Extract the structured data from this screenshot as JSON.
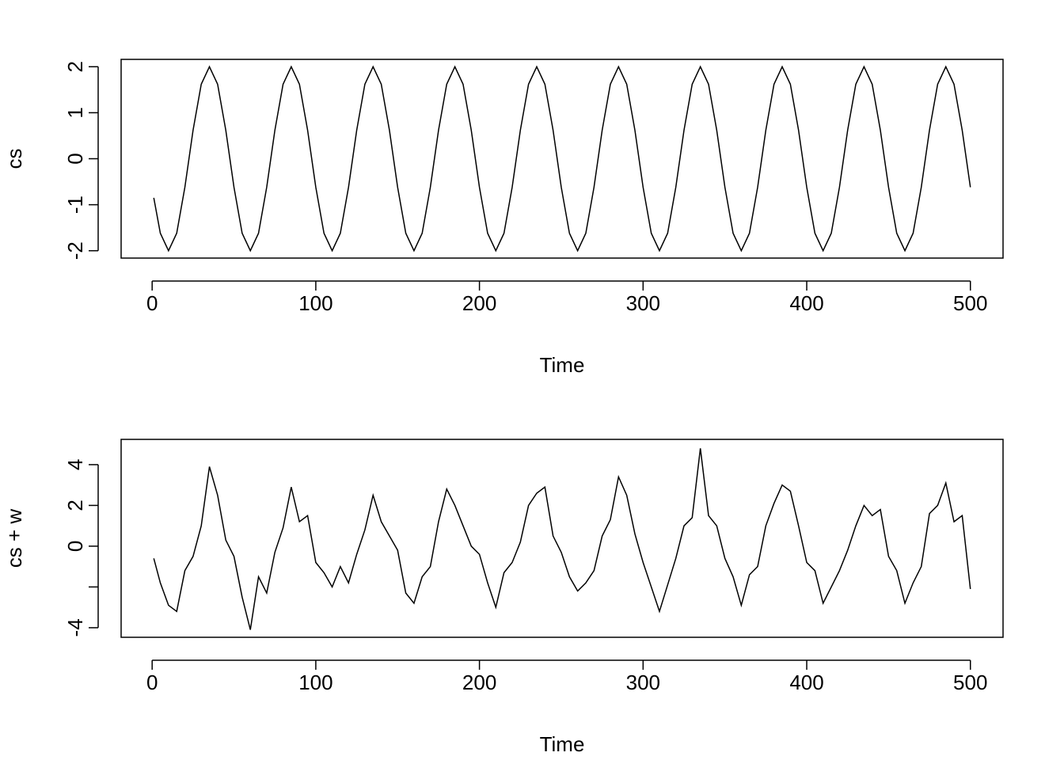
{
  "chart_data": [
    {
      "type": "line",
      "ylabel": "cs",
      "xlabel": "Time",
      "color": "#000000",
      "x": [
        1,
        5,
        10,
        15,
        20,
        25,
        30,
        35,
        40,
        45,
        50,
        55,
        60,
        65,
        70,
        75,
        80,
        85,
        90,
        95,
        100,
        105,
        110,
        115,
        120,
        125,
        130,
        135,
        140,
        145,
        150,
        155,
        160,
        165,
        170,
        175,
        180,
        185,
        190,
        195,
        200,
        205,
        210,
        215,
        220,
        225,
        230,
        235,
        240,
        245,
        250,
        255,
        260,
        265,
        270,
        275,
        280,
        285,
        290,
        295,
        300,
        305,
        310,
        315,
        320,
        325,
        330,
        335,
        340,
        345,
        350,
        355,
        360,
        365,
        370,
        375,
        380,
        385,
        390,
        395,
        400,
        405,
        410,
        415,
        420,
        425,
        430,
        435,
        440,
        445,
        450,
        455,
        460,
        465,
        470,
        475,
        480,
        485,
        490,
        495,
        500
      ],
      "values": [
        -0.85,
        -1.62,
        -2,
        -1.62,
        -0.62,
        0.62,
        1.62,
        2,
        1.62,
        0.62,
        -0.62,
        -1.62,
        -2,
        -1.62,
        -0.62,
        0.62,
        1.62,
        2,
        1.62,
        0.62,
        -0.62,
        -1.62,
        -2,
        -1.62,
        -0.62,
        0.62,
        1.62,
        2,
        1.62,
        0.62,
        -0.62,
        -1.62,
        -2,
        -1.62,
        -0.62,
        0.62,
        1.62,
        2,
        1.62,
        0.62,
        -0.62,
        -1.62,
        -2,
        -1.62,
        -0.62,
        0.62,
        1.62,
        2,
        1.62,
        0.62,
        -0.62,
        -1.62,
        -2,
        -1.62,
        -0.62,
        0.62,
        1.62,
        2,
        1.62,
        0.62,
        -0.62,
        -1.62,
        -2,
        -1.62,
        -0.62,
        0.62,
        1.62,
        2,
        1.62,
        0.62,
        -0.62,
        -1.62,
        -2,
        -1.62,
        -0.62,
        0.62,
        1.62,
        2,
        1.62,
        0.62,
        -0.62,
        -1.62,
        -2,
        -1.62,
        -0.62,
        0.62,
        1.62,
        2,
        1.62,
        0.62,
        -0.62,
        -1.62,
        -2,
        -1.62,
        -0.62,
        0.62,
        1.62,
        2,
        1.62,
        0.62,
        -0.62
      ],
      "xlim": [
        -18.96,
        519.96
      ],
      "xticks": [
        0,
        100,
        200,
        300,
        400,
        500
      ],
      "ylim": [
        -2.16,
        2.16
      ],
      "yticks": [
        -2,
        -1,
        0,
        1,
        2
      ]
    },
    {
      "type": "line",
      "ylabel": "cs + w",
      "xlabel": "Time",
      "color": "#000000",
      "x": [
        1,
        5,
        10,
        15,
        20,
        25,
        30,
        35,
        40,
        45,
        50,
        55,
        60,
        65,
        70,
        75,
        80,
        85,
        90,
        95,
        100,
        105,
        110,
        115,
        120,
        125,
        130,
        135,
        140,
        145,
        150,
        155,
        160,
        165,
        170,
        175,
        180,
        185,
        190,
        195,
        200,
        205,
        210,
        215,
        220,
        225,
        230,
        235,
        240,
        245,
        250,
        255,
        260,
        265,
        270,
        275,
        280,
        285,
        290,
        295,
        300,
        305,
        310,
        315,
        320,
        325,
        330,
        335,
        340,
        345,
        350,
        355,
        360,
        365,
        370,
        375,
        380,
        385,
        390,
        395,
        400,
        405,
        410,
        415,
        420,
        425,
        430,
        435,
        440,
        445,
        450,
        455,
        460,
        465,
        470,
        475,
        480,
        485,
        490,
        495,
        500
      ],
      "values": [
        -0.6,
        -1.8,
        -2.9,
        -3.2,
        -1.2,
        -0.5,
        1.0,
        3.9,
        2.5,
        0.3,
        -0.5,
        -2.5,
        -4.1,
        -1.5,
        -2.3,
        -0.3,
        0.9,
        2.9,
        1.2,
        1.5,
        -0.8,
        -1.3,
        -2.0,
        -1.0,
        -1.8,
        -0.4,
        0.8,
        2.5,
        1.2,
        0.5,
        -0.2,
        -2.3,
        -2.8,
        -1.5,
        -1.0,
        1.2,
        2.8,
        2.0,
        1.0,
        0.0,
        -0.4,
        -1.8,
        -3.0,
        -1.3,
        -0.8,
        0.2,
        2.0,
        2.6,
        2.9,
        0.5,
        -0.3,
        -1.5,
        -2.2,
        -1.8,
        -1.2,
        0.5,
        1.3,
        3.4,
        2.5,
        0.6,
        -0.8,
        -2.0,
        -3.2,
        -1.9,
        -0.6,
        1.0,
        1.4,
        4.8,
        1.5,
        1.0,
        -0.6,
        -1.5,
        -2.9,
        -1.4,
        -1.0,
        1.0,
        2.1,
        3.0,
        2.7,
        1.0,
        -0.8,
        -1.2,
        -2.8,
        -2.0,
        -1.2,
        -0.2,
        1.0,
        2.0,
        1.5,
        1.8,
        -0.5,
        -1.2,
        -2.8,
        -1.8,
        -1.0,
        1.6,
        2.0,
        3.1,
        1.2,
        1.5,
        -2.1
      ],
      "xlim": [
        -18.96,
        519.96
      ],
      "xticks": [
        0,
        100,
        200,
        300,
        400,
        500
      ],
      "ylim": [
        -4.47,
        5.24
      ],
      "yticks": [
        -4,
        {
          "value": -2,
          "label": null
        },
        0,
        2,
        4
      ]
    }
  ]
}
